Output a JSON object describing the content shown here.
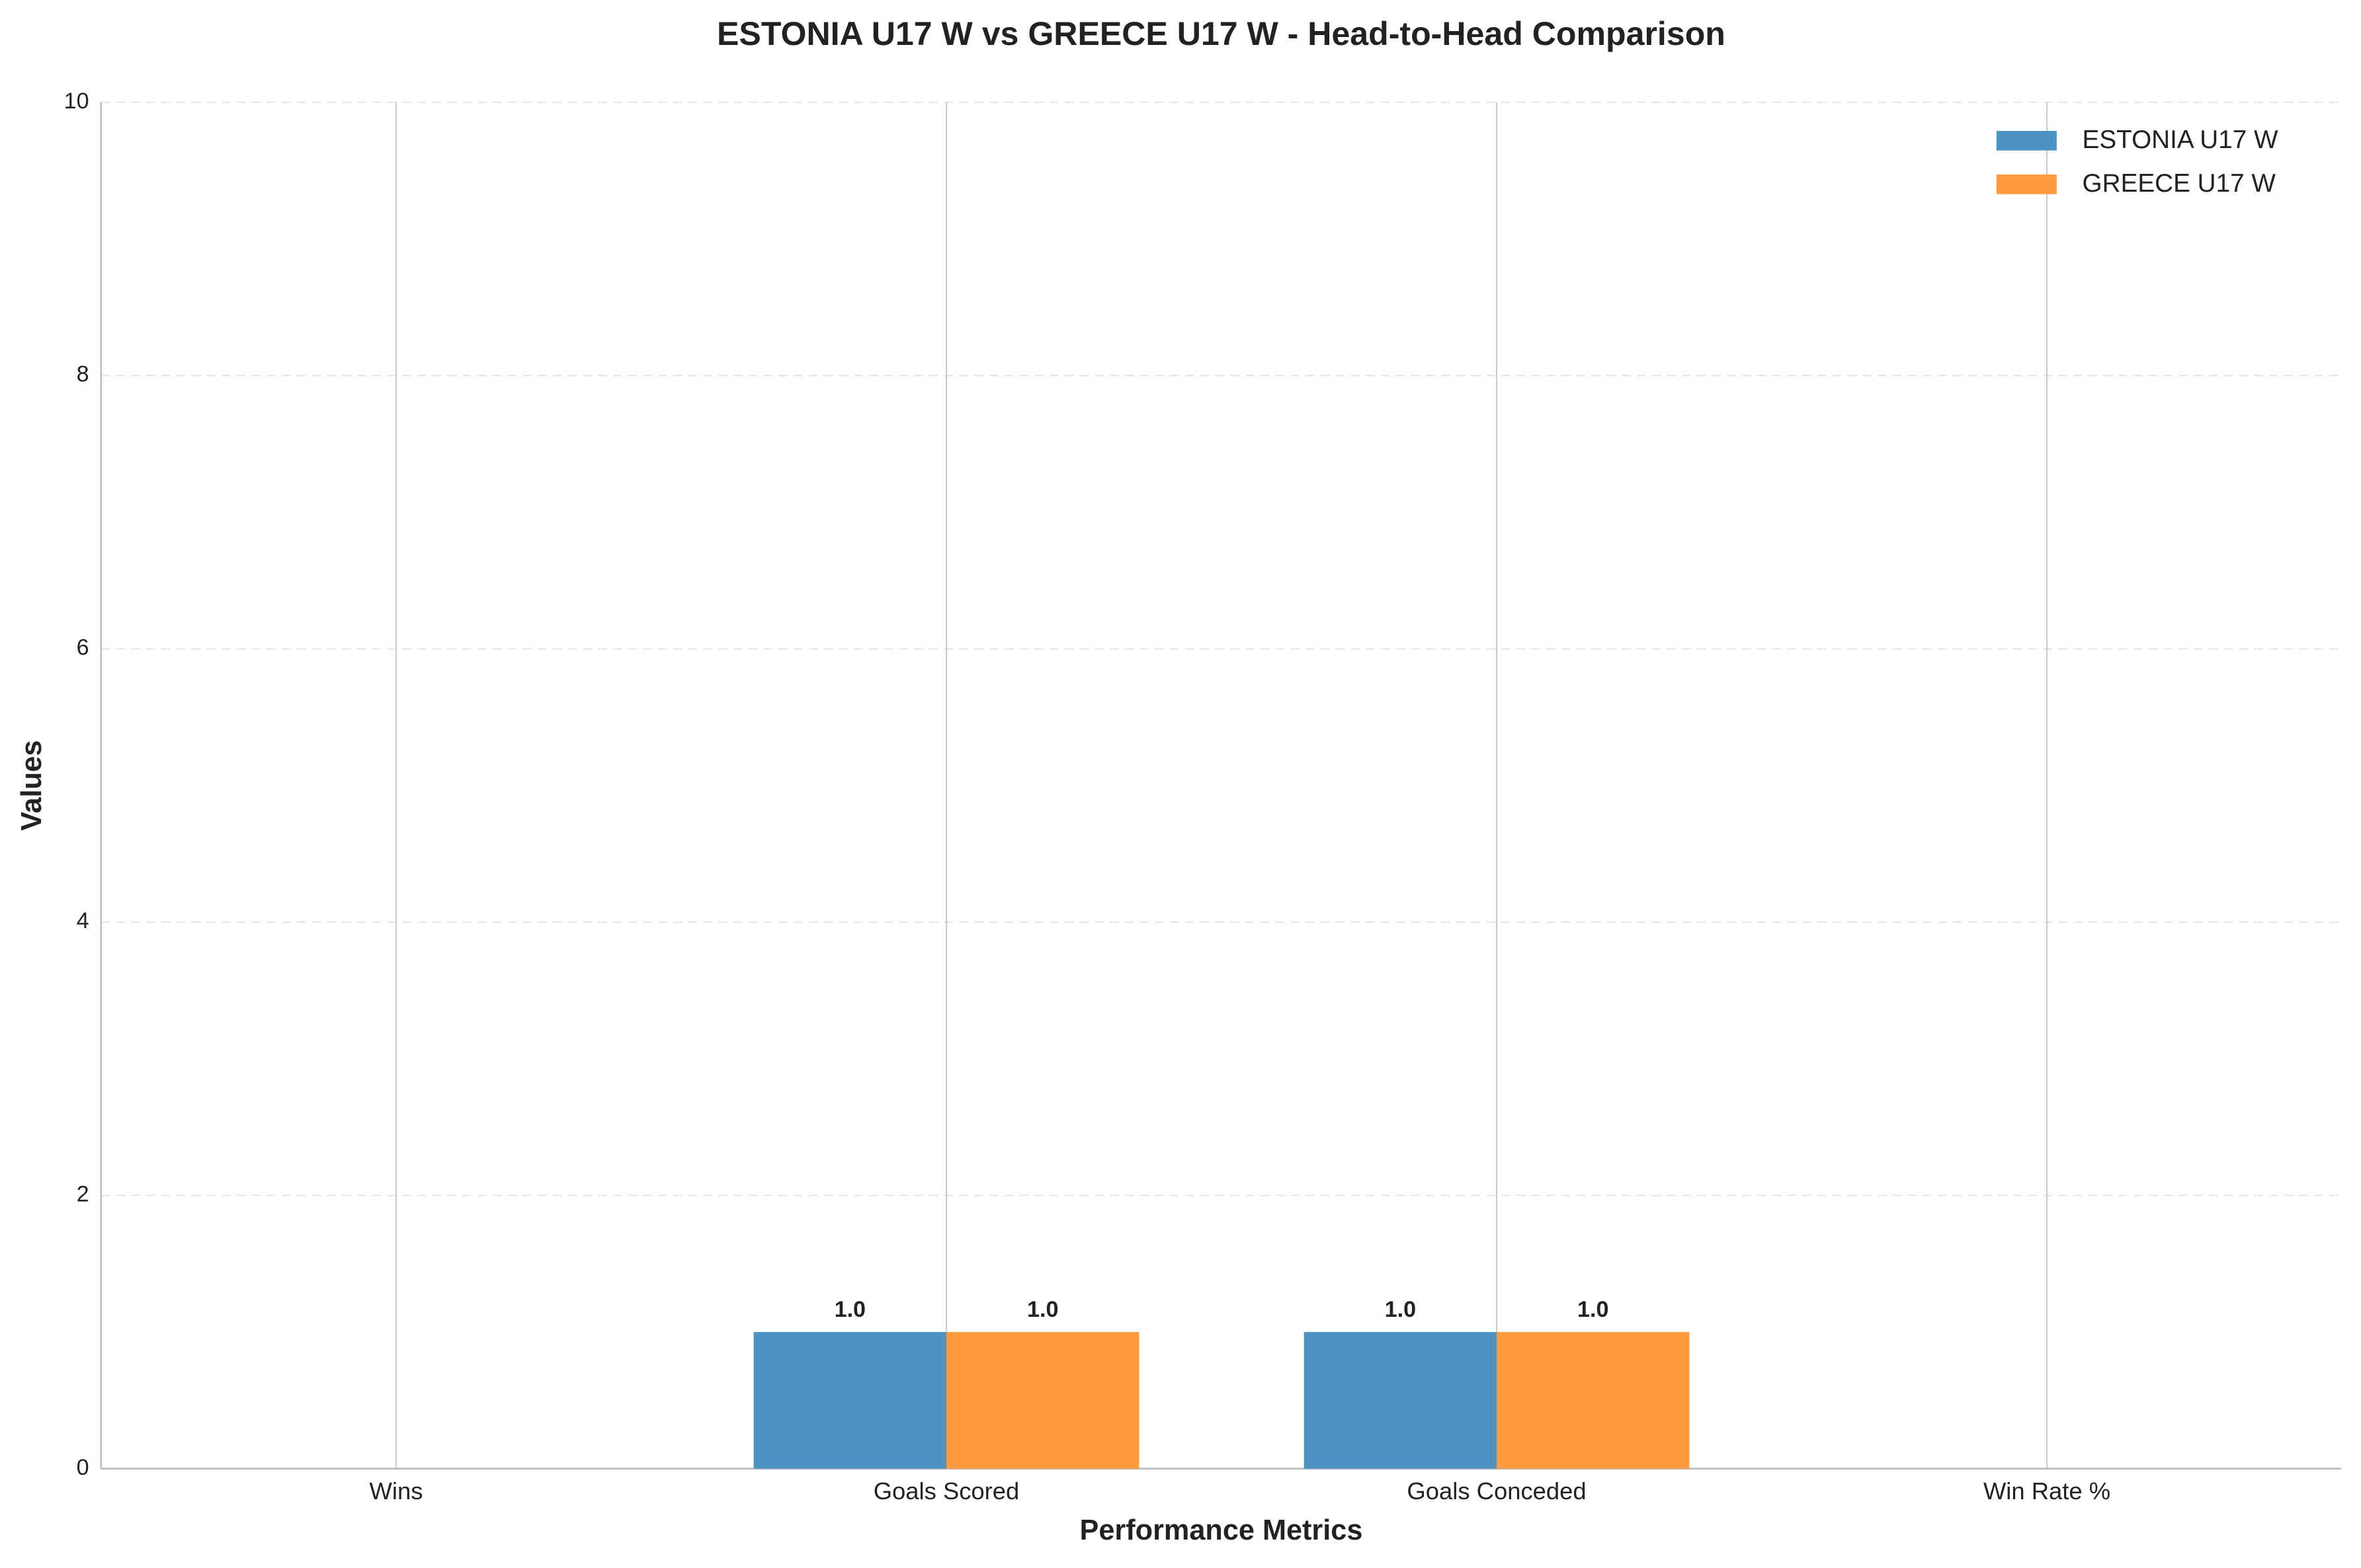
{
  "chart_data": {
    "type": "bar",
    "title": "ESTONIA U17 W vs GREECE U17 W - Head-to-Head Comparison",
    "x_label": "Performance Metrics",
    "y_label": "Values",
    "categories": [
      "Wins",
      "Goals Scored",
      "Goals Conceded",
      "Win Rate %"
    ],
    "series": [
      {
        "name": "ESTONIA U17 W",
        "color": "#4c93c3",
        "values": [
          0,
          1,
          1,
          0
        ],
        "value_labels": [
          null,
          "1.0",
          "1.0",
          null
        ]
      },
      {
        "name": "GREECE U17 W",
        "color": "#ff9a3f",
        "values": [
          0,
          1,
          1,
          0
        ],
        "value_labels": [
          null,
          "1.0",
          "1.0",
          null
        ]
      }
    ],
    "ylim": [
      0,
      10
    ],
    "yticks": [
      0,
      2,
      4,
      6,
      8,
      10
    ],
    "grid": true,
    "legend": "upper right"
  }
}
